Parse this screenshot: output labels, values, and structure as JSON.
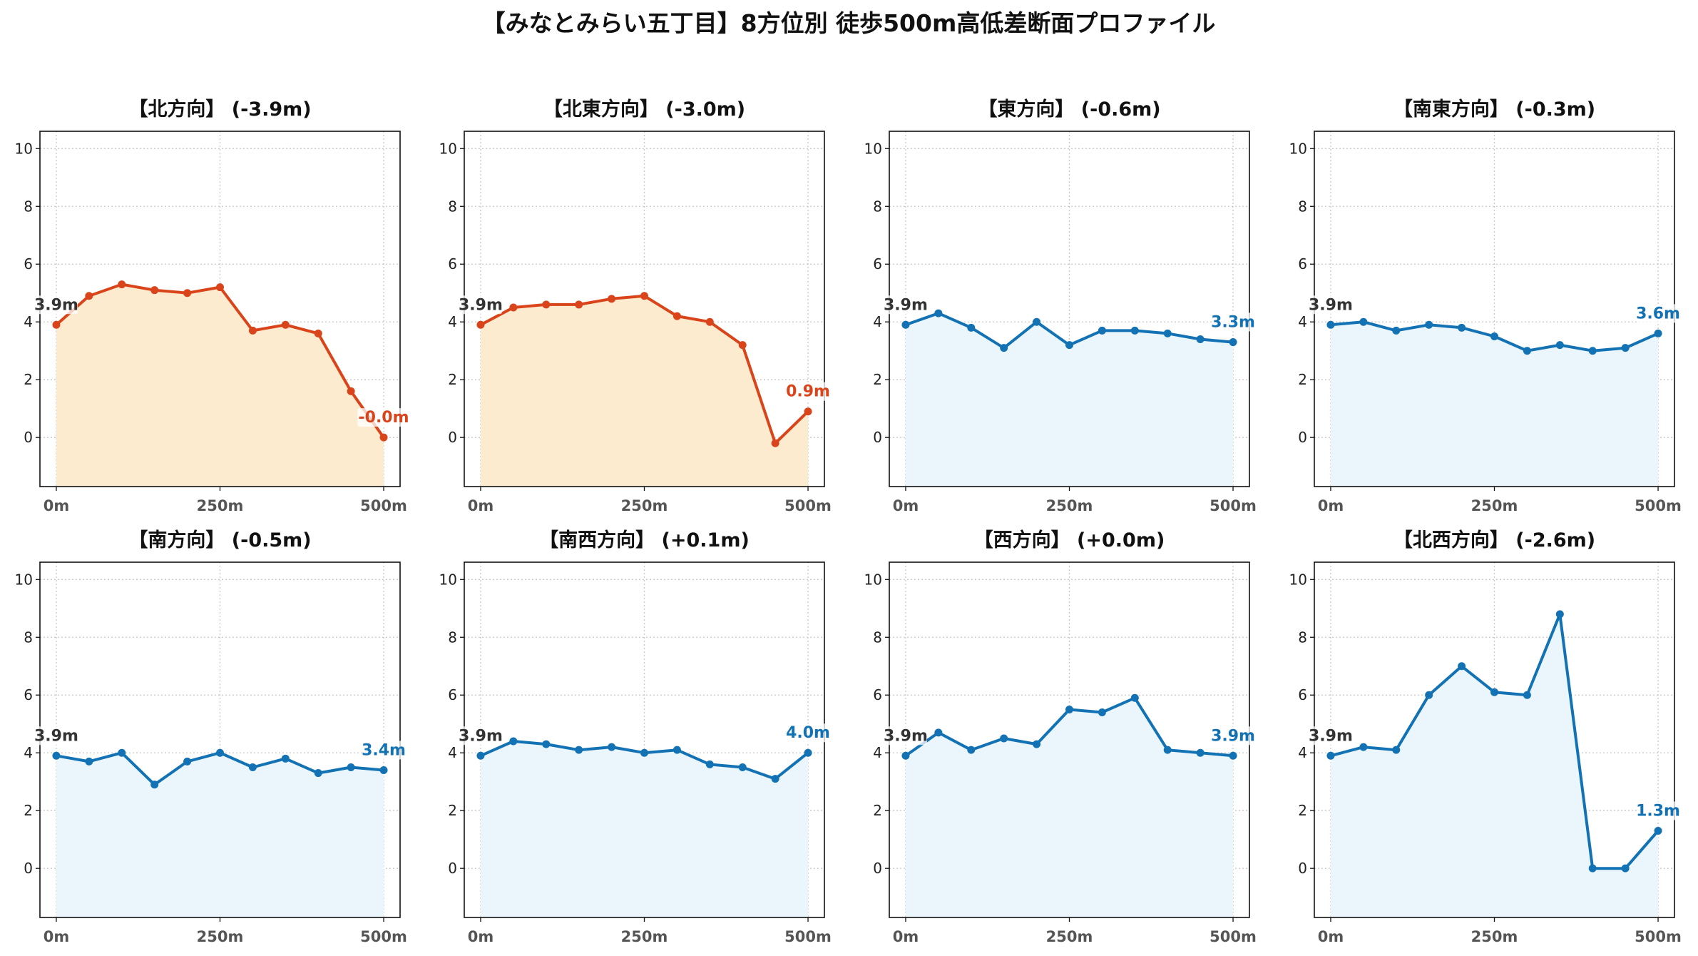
{
  "title": "【みなとみらい五丁目】8方位別 徒歩500m高低差断面プロファイル",
  "colors": {
    "down_line": "#d9441a",
    "down_fill": "#fdebd0",
    "up_line": "#1272b4",
    "up_fill": "#eaf6fb",
    "start_label": "#333333",
    "grid": "#c8c8c8"
  },
  "chart_data": [
    {
      "type": "area",
      "title": "【北方向】 (-3.9m)",
      "trend": "down",
      "x": [
        0,
        50,
        100,
        150,
        200,
        250,
        300,
        350,
        400,
        450,
        500
      ],
      "y": [
        3.9,
        4.9,
        5.3,
        5.1,
        5.0,
        5.2,
        3.7,
        3.9,
        3.6,
        1.6,
        0.0
      ],
      "start_label": "3.9m",
      "end_label": "-0.0m",
      "xticks": [
        "0m",
        "250m",
        "500m"
      ],
      "yticks": [
        "0",
        "2",
        "4",
        "6",
        "8",
        "10"
      ],
      "ylim": [
        -1.7,
        10.6
      ],
      "grid": true
    },
    {
      "type": "area",
      "title": "【北東方向】 (-3.0m)",
      "trend": "down",
      "x": [
        0,
        50,
        100,
        150,
        200,
        250,
        300,
        350,
        400,
        450,
        500
      ],
      "y": [
        3.9,
        4.5,
        4.6,
        4.6,
        4.8,
        4.9,
        4.2,
        4.0,
        3.2,
        -0.2,
        0.9
      ],
      "start_label": "3.9m",
      "end_label": "0.9m",
      "xticks": [
        "0m",
        "250m",
        "500m"
      ],
      "yticks": [
        "0",
        "2",
        "4",
        "6",
        "8",
        "10"
      ],
      "ylim": [
        -1.7,
        10.6
      ],
      "grid": true
    },
    {
      "type": "area",
      "title": "【東方向】 (-0.6m)",
      "trend": "up",
      "x": [
        0,
        50,
        100,
        150,
        200,
        250,
        300,
        350,
        400,
        450,
        500
      ],
      "y": [
        3.9,
        4.3,
        3.8,
        3.1,
        4.0,
        3.2,
        3.7,
        3.7,
        3.6,
        3.4,
        3.3
      ],
      "start_label": "3.9m",
      "end_label": "3.3m",
      "xticks": [
        "0m",
        "250m",
        "500m"
      ],
      "yticks": [
        "0",
        "2",
        "4",
        "6",
        "8",
        "10"
      ],
      "ylim": [
        -1.7,
        10.6
      ],
      "grid": true
    },
    {
      "type": "area",
      "title": "【南東方向】 (-0.3m)",
      "trend": "up",
      "x": [
        0,
        50,
        100,
        150,
        200,
        250,
        300,
        350,
        400,
        450,
        500
      ],
      "y": [
        3.9,
        4.0,
        3.7,
        3.9,
        3.8,
        3.5,
        3.0,
        3.2,
        3.0,
        3.1,
        3.6
      ],
      "start_label": "3.9m",
      "end_label": "3.6m",
      "xticks": [
        "0m",
        "250m",
        "500m"
      ],
      "yticks": [
        "0",
        "2",
        "4",
        "6",
        "8",
        "10"
      ],
      "ylim": [
        -1.7,
        10.6
      ],
      "grid": true
    },
    {
      "type": "area",
      "title": "【南方向】 (-0.5m)",
      "trend": "up",
      "x": [
        0,
        50,
        100,
        150,
        200,
        250,
        300,
        350,
        400,
        450,
        500
      ],
      "y": [
        3.9,
        3.7,
        4.0,
        2.9,
        3.7,
        4.0,
        3.5,
        3.8,
        3.3,
        3.5,
        3.4
      ],
      "start_label": "3.9m",
      "end_label": "3.4m",
      "xticks": [
        "0m",
        "250m",
        "500m"
      ],
      "yticks": [
        "0",
        "2",
        "4",
        "6",
        "8",
        "10"
      ],
      "ylim": [
        -1.7,
        10.6
      ],
      "grid": true
    },
    {
      "type": "area",
      "title": "【南西方向】 (+0.1m)",
      "trend": "up",
      "x": [
        0,
        50,
        100,
        150,
        200,
        250,
        300,
        350,
        400,
        450,
        500
      ],
      "y": [
        3.9,
        4.4,
        4.3,
        4.1,
        4.2,
        4.0,
        4.1,
        3.6,
        3.5,
        3.1,
        4.0
      ],
      "start_label": "3.9m",
      "end_label": "4.0m",
      "xticks": [
        "0m",
        "250m",
        "500m"
      ],
      "yticks": [
        "0",
        "2",
        "4",
        "6",
        "8",
        "10"
      ],
      "ylim": [
        -1.7,
        10.6
      ],
      "grid": true
    },
    {
      "type": "area",
      "title": "【西方向】 (+0.0m)",
      "trend": "up",
      "x": [
        0,
        50,
        100,
        150,
        200,
        250,
        300,
        350,
        400,
        450,
        500
      ],
      "y": [
        3.9,
        4.7,
        4.1,
        4.5,
        4.3,
        5.5,
        5.4,
        5.9,
        4.1,
        4.0,
        3.9
      ],
      "start_label": "3.9m",
      "end_label": "3.9m",
      "xticks": [
        "0m",
        "250m",
        "500m"
      ],
      "yticks": [
        "0",
        "2",
        "4",
        "6",
        "8",
        "10"
      ],
      "ylim": [
        -1.7,
        10.6
      ],
      "grid": true
    },
    {
      "type": "area",
      "title": "【北西方向】 (-2.6m)",
      "trend": "up",
      "x": [
        0,
        50,
        100,
        150,
        200,
        250,
        300,
        350,
        400,
        450,
        500
      ],
      "y": [
        3.9,
        4.2,
        4.1,
        6.0,
        7.0,
        6.1,
        6.0,
        8.8,
        0.0,
        0.0,
        1.3
      ],
      "start_label": "3.9m",
      "end_label": "1.3m",
      "xticks": [
        "0m",
        "250m",
        "500m"
      ],
      "yticks": [
        "0",
        "2",
        "4",
        "6",
        "8",
        "10"
      ],
      "ylim": [
        -1.7,
        10.6
      ],
      "grid": true
    }
  ]
}
